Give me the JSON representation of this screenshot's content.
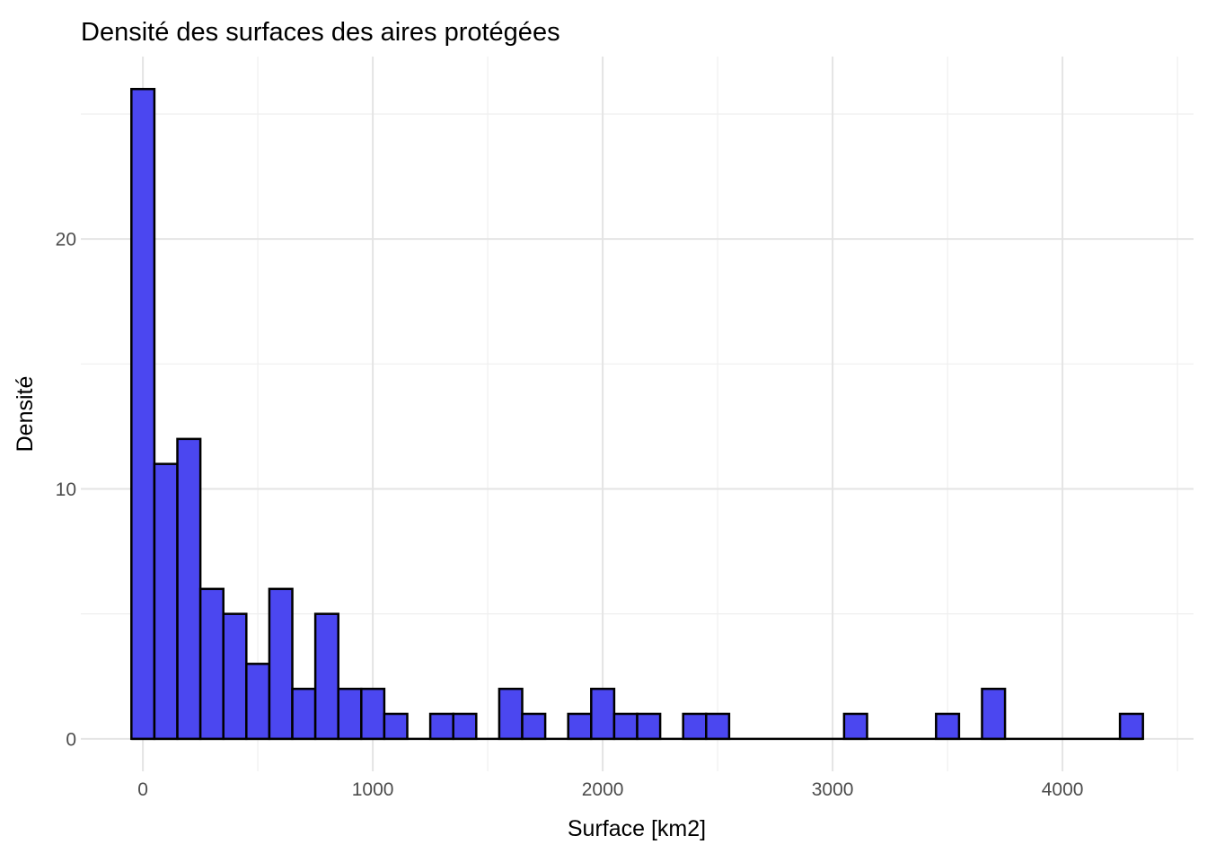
{
  "chart_data": {
    "type": "bar",
    "subtype": "histogram",
    "title": "Densité des surfaces des aires protégées",
    "xlabel": "Surface [km2]",
    "ylabel": "Densité",
    "bin_width": 100,
    "bin_centers": [
      0,
      100,
      200,
      300,
      400,
      500,
      600,
      700,
      800,
      900,
      1000,
      1100,
      1200,
      1300,
      1400,
      1500,
      1600,
      1700,
      1800,
      1900,
      2000,
      2100,
      2200,
      2300,
      2400,
      2500,
      2600,
      2700,
      2800,
      2900,
      3000,
      3100,
      3200,
      3300,
      3400,
      3500,
      3600,
      3700,
      3800,
      3900,
      4000,
      4100,
      4200,
      4300
    ],
    "counts": [
      26,
      11,
      12,
      6,
      5,
      3,
      6,
      2,
      5,
      2,
      2,
      1,
      0,
      1,
      1,
      0,
      2,
      1,
      0,
      1,
      2,
      1,
      1,
      0,
      1,
      1,
      0,
      0,
      0,
      0,
      0,
      1,
      0,
      0,
      0,
      1,
      0,
      2,
      0,
      0,
      0,
      0,
      0,
      1
    ],
    "x_ticks": [
      0,
      1000,
      2000,
      3000,
      4000
    ],
    "x_minor_ticks": [
      500,
      1500,
      2500,
      3500,
      4500
    ],
    "y_ticks": [
      0,
      10,
      20
    ],
    "y_minor_ticks": [
      5,
      15,
      25
    ],
    "xlim": [
      -270,
      4570
    ],
    "ylim": [
      -1.3,
      27.3
    ],
    "data_range_x": [
      -50,
      4350
    ],
    "grid": "major+minor",
    "legend_position": "none",
    "colors": {
      "bar_fill": "#4B47F0",
      "bar_stroke": "#000000",
      "grid_major": "#E4E4E4",
      "grid_minor": "#EFEFEF",
      "baseline": "#000000",
      "tick_label": "#4D4D4D",
      "text": "#000000",
      "background": "#FFFFFF"
    }
  }
}
